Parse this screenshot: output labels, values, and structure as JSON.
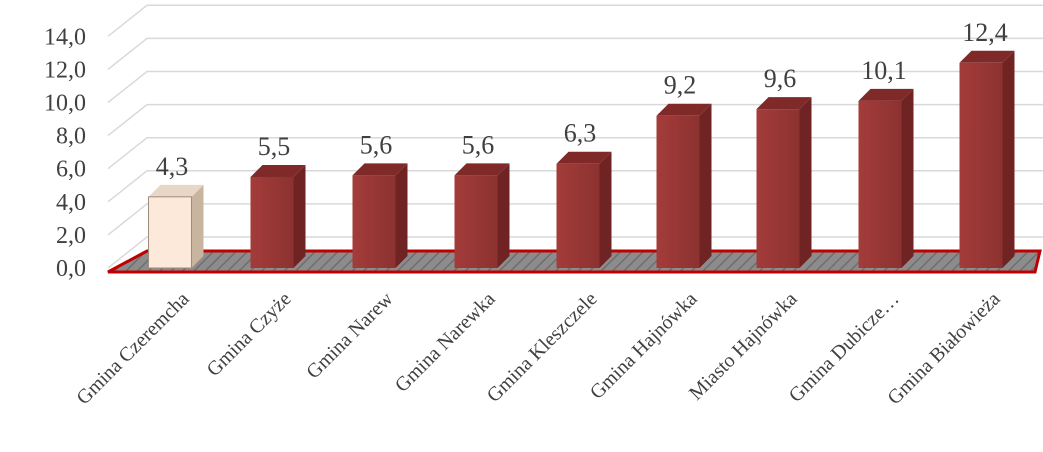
{
  "chart_data": {
    "type": "bar",
    "title": "",
    "xlabel": "",
    "ylabel": "",
    "ylim": [
      0,
      14
    ],
    "y_ticks": [
      "0,0",
      "2,0",
      "4,0",
      "6,0",
      "8,0",
      "10,0",
      "12,0",
      "14,0"
    ],
    "categories": [
      "Gmina Czeremcha",
      "Gmina Czyże",
      "Gmina Narew",
      "Gmina Narewka",
      "Gmina Kleszczele",
      "Gmina Hajnówka",
      "Miasto Hajnówka",
      "Gmina Dubicze…",
      "Gmina Białowieża"
    ],
    "values": [
      4.3,
      5.5,
      5.6,
      5.6,
      6.3,
      9.2,
      9.6,
      10.1,
      12.4
    ],
    "data_labels": [
      "4,3",
      "5,5",
      "5,6",
      "5,6",
      "6,3",
      "9,2",
      "9,6",
      "10,1",
      "12,4"
    ],
    "grid": true,
    "style": "3d-column",
    "colors": {
      "bar": "#943634",
      "highlight_bar": "#FDE9D9",
      "gridline": "#D9D9D9",
      "floor": "#7F7F7F",
      "floor_edge": "#C00000"
    },
    "highlight_index": 0
  }
}
